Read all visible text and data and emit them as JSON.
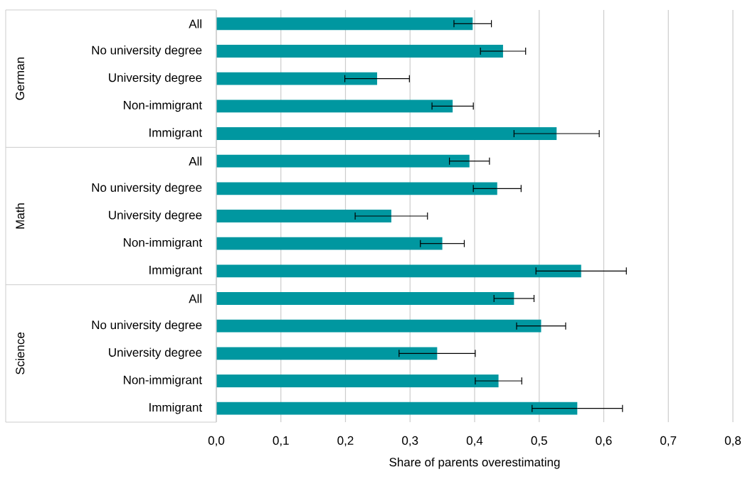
{
  "chart_data": {
    "type": "bar",
    "orientation": "horizontal",
    "xlabel": "Share of parents overestimating",
    "categories": [
      "All",
      "No university degree",
      "University degree",
      "Non-immigrant",
      "Immigrant",
      "All",
      "No university degree",
      "University degree",
      "Non-immigrant",
      "Immigrant",
      "All",
      "No university degree",
      "University degree",
      "Non-immigrant",
      "Immigrant"
    ],
    "values": [
      0.397,
      0.444,
      0.249,
      0.366,
      0.527,
      0.392,
      0.435,
      0.271,
      0.35,
      0.565,
      0.461,
      0.503,
      0.342,
      0.437,
      0.559
    ],
    "errors": [
      0.029,
      0.035,
      0.05,
      0.032,
      0.066,
      0.031,
      0.037,
      0.056,
      0.034,
      0.07,
      0.031,
      0.038,
      0.059,
      0.036,
      0.07
    ],
    "color": "#0097a0",
    "annotations": [
      "German",
      "Math",
      "Science"
    ],
    "xlim": [
      0,
      0.8
    ],
    "xticks": [
      {
        "value": 0,
        "label": "0,0"
      },
      {
        "value": 0.1,
        "label": "0,1"
      },
      {
        "value": 0.2,
        "label": "0,2"
      },
      {
        "value": 0.3,
        "label": "0,3"
      },
      {
        "value": 0.4,
        "label": "0,4"
      },
      {
        "value": 0.5,
        "label": "0,5"
      },
      {
        "value": 0.6,
        "label": "0,6"
      },
      {
        "value": 0.7,
        "label": "0,7"
      },
      {
        "value": 0.8,
        "label": "0,8"
      }
    ],
    "grid": "x"
  }
}
